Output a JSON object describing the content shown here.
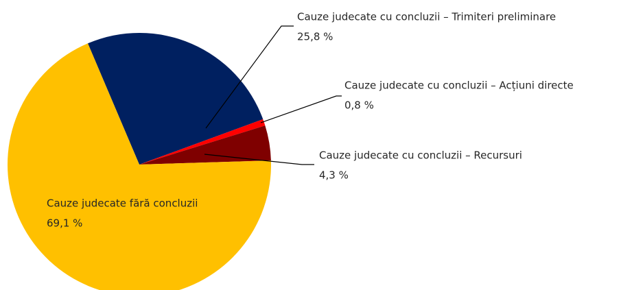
{
  "chart_data": {
    "type": "pie",
    "categories": [
      "Cauze judecate cu concluzii – Trimiteri preliminare",
      "Cauze judecate cu concluzii – Acțiuni directe",
      "Cauze judecate cu concluzii – Recursuri",
      "Cauze judecate fără concluzii"
    ],
    "values": [
      25.8,
      0.8,
      4.3,
      69.1
    ],
    "value_labels": [
      "25,8 %",
      "0,8 %",
      "4,3 %",
      "69,1 %"
    ],
    "colors": [
      "#002060",
      "#ff0000",
      "#7f0000",
      "#ffc000"
    ]
  }
}
